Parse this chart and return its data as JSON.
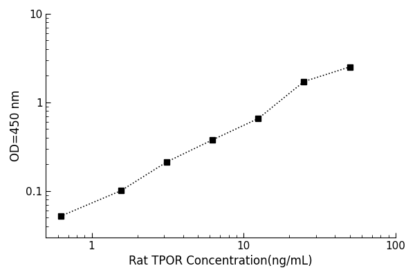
{
  "x": [
    0.625,
    1.563,
    3.125,
    6.25,
    12.5,
    25.0,
    50.0
  ],
  "y": [
    0.052,
    0.101,
    0.213,
    0.378,
    0.657,
    1.72,
    2.51
  ],
  "xlim": [
    0.5,
    100
  ],
  "ylim": [
    0.03,
    10
  ],
  "xlabel": "Rat TPOR Concentration(ng/mL)",
  "ylabel": "OD=450 nm",
  "xticks_major": [
    1,
    10,
    100
  ],
  "yticks_major": [
    0.1,
    1,
    10
  ],
  "line_color": "#000000",
  "marker_color": "#000000",
  "line_style": "dotted",
  "marker_style": "s",
  "marker_size": 6,
  "background_color": "#ffffff",
  "xlabel_fontsize": 12,
  "ylabel_fontsize": 12,
  "tick_fontsize": 11
}
